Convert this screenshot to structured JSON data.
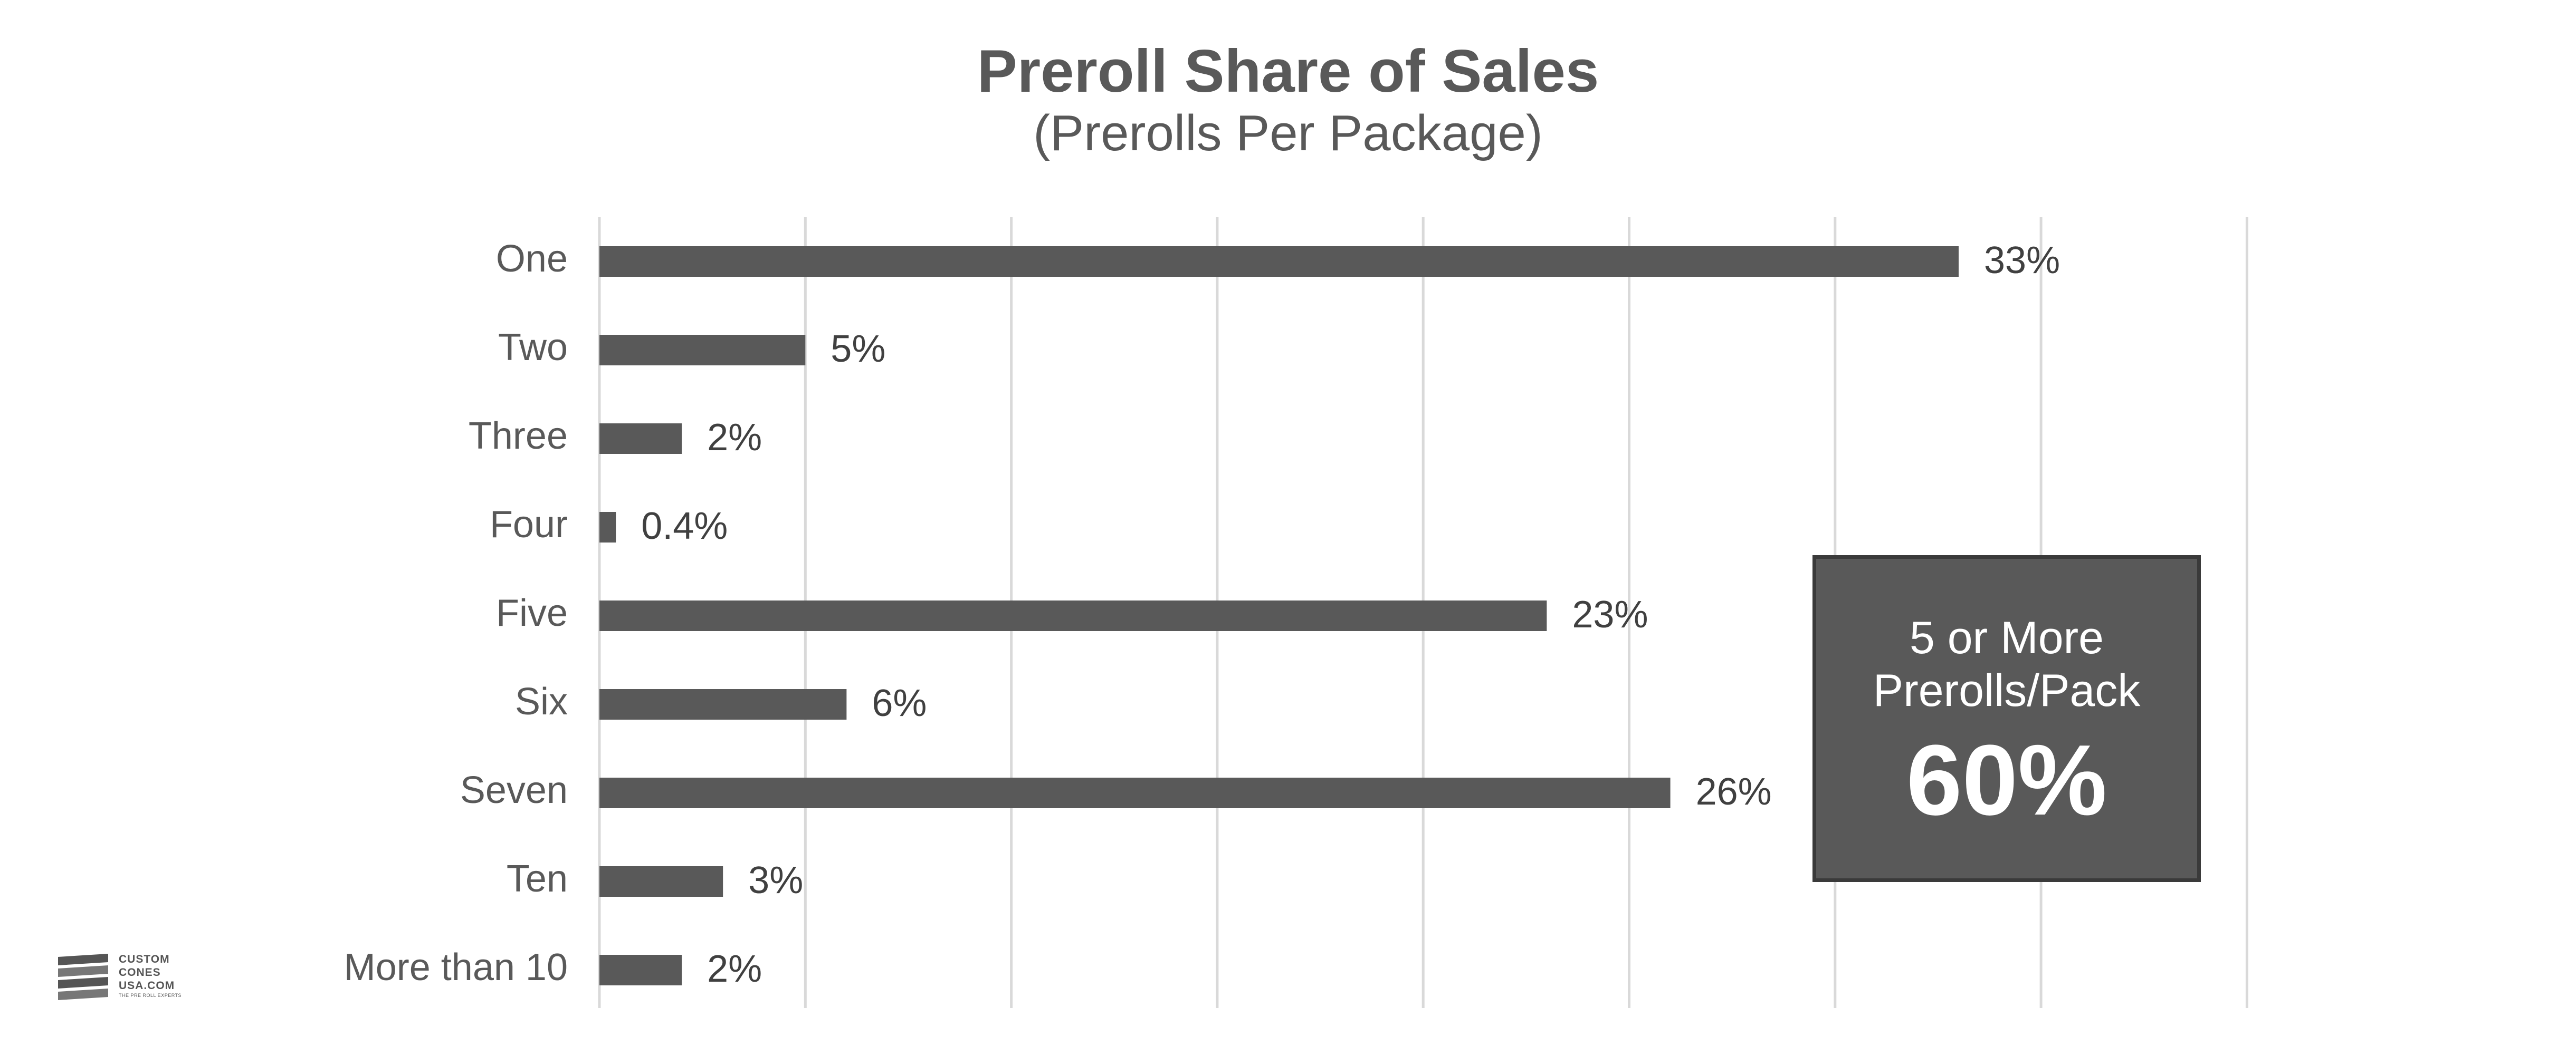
{
  "chart_data": {
    "type": "bar",
    "orientation": "horizontal",
    "title": "Preroll Share of Sales",
    "subtitle": "(Prerolls Per Package)",
    "categories": [
      "One",
      "Two",
      "Three",
      "Four",
      "Five",
      "Six",
      "Seven",
      "Ten",
      "More than 10"
    ],
    "values": [
      33,
      5,
      2,
      0.4,
      23,
      6,
      26,
      3,
      2
    ],
    "value_labels": [
      "33%",
      "5%",
      "2%",
      "0.4%",
      "23%",
      "6%",
      "26%",
      "3%",
      "2%"
    ],
    "xlim": [
      0,
      40
    ],
    "grid": true,
    "bar_color": "#595959",
    "grid_color": "#d9d9d9",
    "label_color": "#595959"
  },
  "callout": {
    "line1": "5 or More",
    "line2": "Prerolls/Pack",
    "value": "60%"
  },
  "logo": {
    "lines": [
      "CUSTOM",
      "CONES",
      "USA.COM"
    ],
    "tagline": "THE PRE ROLL EXPERTS"
  }
}
